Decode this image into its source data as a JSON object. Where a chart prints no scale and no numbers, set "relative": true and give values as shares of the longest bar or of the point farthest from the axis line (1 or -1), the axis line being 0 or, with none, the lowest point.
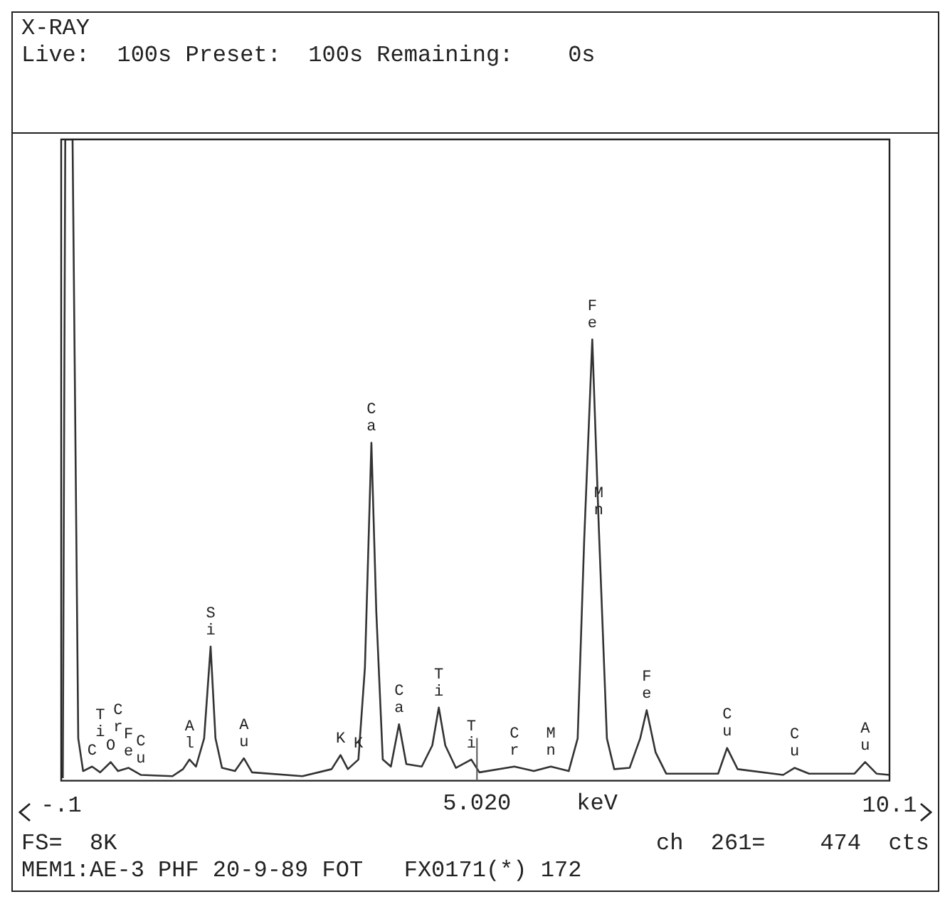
{
  "chart_data": {
    "type": "line",
    "title": "X-RAY",
    "subtitle": "Live:  100s Preset:  100s Remaining:    0s",
    "xlabel": "keV",
    "relative": true,
    "marker": "none",
    "xlim": [
      -0.1,
      10.1
    ],
    "xticks": [
      {
        "value": -0.1,
        "label": "-.1"
      },
      10.1
    ],
    "ref_lines": [
      {
        "axis": "x",
        "value": 5.02,
        "label": "5.020"
      }
    ],
    "series": [
      {
        "color": "#333333",
        "x": [
          -0.08,
          -0.05,
          0.04,
          0.11,
          0.17,
          0.28,
          0.38,
          0.51,
          0.6,
          0.73,
          0.88,
          1.27,
          1.4,
          1.48,
          1.56,
          1.66,
          1.74,
          1.8,
          1.88,
          2.04,
          2.15,
          2.25,
          2.87,
          3.23,
          3.34,
          3.43,
          3.56,
          3.64,
          3.72,
          3.78,
          3.86,
          3.96,
          4.06,
          4.15,
          4.34,
          4.47,
          4.55,
          4.63,
          4.76,
          4.95,
          5.05,
          5.48,
          5.72,
          5.93,
          6.15,
          6.26,
          6.34,
          6.44,
          6.52,
          6.62,
          6.71,
          6.9,
          7.03,
          7.11,
          7.22,
          7.35,
          7.99,
          8.1,
          8.23,
          8.79,
          8.93,
          9.11,
          9.67,
          9.8,
          9.94,
          10.1
        ],
        "values": [
          0.004,
          1,
          1,
          0.066,
          0.015,
          0.022,
          0.013,
          0.029,
          0.015,
          0.02,
          0.009,
          0.007,
          0.018,
          0.033,
          0.022,
          0.066,
          0.209,
          0.066,
          0.02,
          0.015,
          0.035,
          0.013,
          0.007,
          0.018,
          0.04,
          0.018,
          0.033,
          0.176,
          0.527,
          0.264,
          0.033,
          0.022,
          0.088,
          0.026,
          0.022,
          0.055,
          0.114,
          0.055,
          0.02,
          0.033,
          0.013,
          0.022,
          0.015,
          0.022,
          0.015,
          0.066,
          0.374,
          0.688,
          0.396,
          0.066,
          0.018,
          0.02,
          0.066,
          0.11,
          0.044,
          0.011,
          0.011,
          0.051,
          0.018,
          0.009,
          0.02,
          0.011,
          0.011,
          0.029,
          0.011,
          0.009
        ]
      }
    ],
    "annotations": [
      {
        "text": "O",
        "x": 0.51,
        "y": 0.029
      },
      {
        "text": "C",
        "x": 0.28,
        "y": 0.022
      },
      {
        "text": "Ti",
        "x": 0.38,
        "y": 0.013
      },
      {
        "text": "Cr",
        "x": 0.6,
        "y": 0.015
      },
      {
        "text": "Fe",
        "x": 0.73,
        "y": 0.02
      },
      {
        "text": "Cu",
        "x": 0.88,
        "y": 0.009
      },
      {
        "text": "Al",
        "x": 1.48,
        "y": 0.033
      },
      {
        "text": "Si",
        "x": 1.74,
        "y": 0.209
      },
      {
        "text": "Au",
        "x": 2.15,
        "y": 0.035
      },
      {
        "text": "K",
        "x": 3.34,
        "y": 0.04
      },
      {
        "text": "K",
        "x": 3.56,
        "y": 0.033
      },
      {
        "text": "Ca",
        "x": 3.72,
        "y": 0.527
      },
      {
        "text": "Ca",
        "x": 4.06,
        "y": 0.088
      },
      {
        "text": "Ti",
        "x": 4.55,
        "y": 0.114
      },
      {
        "text": "Ti",
        "x": 4.95,
        "y": 0.033
      },
      {
        "text": "Cr",
        "x": 5.48,
        "y": 0.022
      },
      {
        "text": "Mn",
        "x": 5.93,
        "y": 0.022
      },
      {
        "text": "Fe",
        "x": 6.44,
        "y": 0.688
      },
      {
        "text": "Mn",
        "x": 6.52,
        "y": 0.396
      },
      {
        "text": "Fe",
        "x": 7.11,
        "y": 0.11
      },
      {
        "text": "Cu",
        "x": 8.1,
        "y": 0.051
      },
      {
        "text": "Cu",
        "x": 8.93,
        "y": 0.02
      },
      {
        "text": "Au",
        "x": 9.8,
        "y": 0.029
      },
      "FS=  8K",
      "ch  261=    474  cts",
      "MEM1:AE-3 PHF 20-9-89 FOT   FX0171(*) 172"
    ]
  }
}
